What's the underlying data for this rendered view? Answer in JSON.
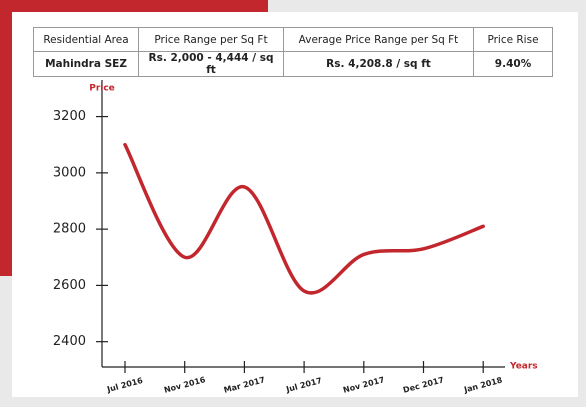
{
  "table": {
    "headers": [
      "Residential Area",
      "Price Range per Sq Ft",
      "Average Price Range per Sq Ft",
      "Price Rise"
    ],
    "rows": [
      [
        "Mahindra SEZ",
        "Rs. 2,000 - 4,444 / sq ft",
        "Rs. 4,208.8 / sq ft",
        "9.40%"
      ]
    ]
  },
  "chart_data": {
    "type": "line",
    "y_label": "Price",
    "x_label": "Years",
    "categories": [
      "Jul 2016",
      "Nov 2016",
      "Mar 2017",
      "Jul 2017",
      "Nov 2017",
      "Dec 2017",
      "Jan 2018"
    ],
    "values": [
      3100,
      2700,
      2950,
      2580,
      2710,
      2730,
      2810
    ],
    "color": "#c1272d",
    "ylim": [
      2310,
      3330
    ],
    "yticks": [
      2400,
      2600,
      2800,
      3000,
      3200
    ]
  }
}
